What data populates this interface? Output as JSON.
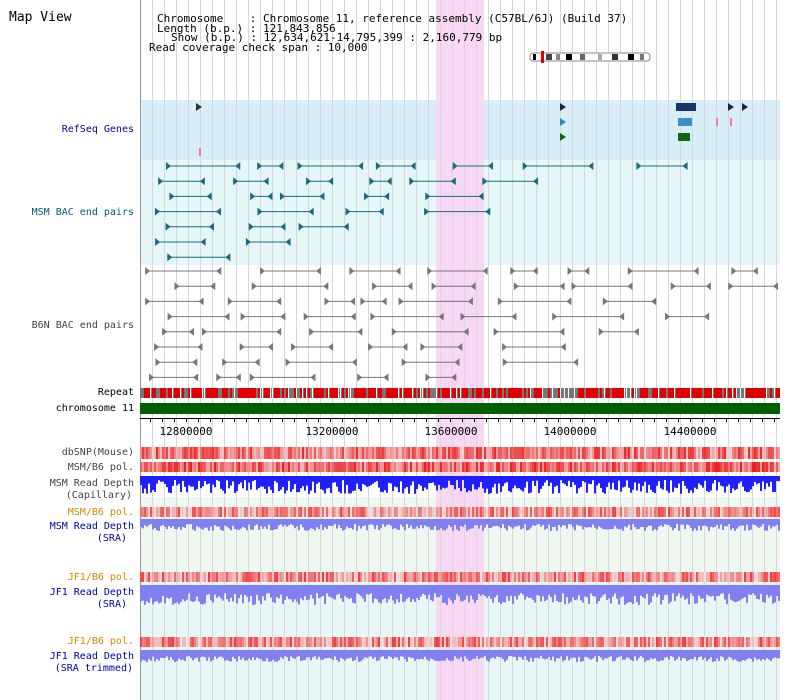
{
  "title": "Map View",
  "info": {
    "chromosome": "Chromosome    : Chromosome 11, reference assembly (C57BL/6J) (Build 37)",
    "length": "Length (b.p.) : 121,843,856",
    "show": "Show (b.p.) : 12,634,621-14,795,399 : 2,160,779 bp",
    "span": "Read coverage check span : 10,000"
  },
  "tracks": {
    "refseq": "RefSeq Genes",
    "msm_bac": "MSM BAC end pairs",
    "b6n_bac": "B6N BAC end pairs",
    "repeat": "Repeat",
    "chromosome": "chromosome 11",
    "dbsnp": "dbSNP(Mouse)",
    "msm_b6_pol": "MSM/B6 pol.",
    "msm_depth_cap_1": "MSM Read Depth",
    "msm_depth_cap_2": "(Capillary)",
    "msm_b6_pol_2": "MSM/B6 pol.",
    "msm_depth_sra_1": "MSM Read Depth",
    "msm_depth_sra_2": "(SRA)",
    "jf1_b6_pol": "JF1/B6 pol.",
    "jf1_depth_sra_1": "JF1 Read Depth",
    "jf1_depth_sra_2": "(SRA)",
    "jf1_b6_pol_2": "JF1/B6 pol.",
    "jf1_depth_trim_1": "JF1 Read Depth",
    "jf1_depth_trim_2": "(SRA trimmed)"
  },
  "axis": {
    "ticks": [
      "12800000",
      "13200000",
      "13600000",
      "14000000",
      "14400000"
    ]
  },
  "colors": {
    "highlight": "#f8d8f4",
    "refseq_bg": "#d8eef8",
    "msm_bg": "#e4f6f8",
    "chrom_green": "#006000",
    "repeat_red": "#e00000",
    "depth_blue": "#2020ff",
    "depth_violet": "#8080f0"
  }
}
